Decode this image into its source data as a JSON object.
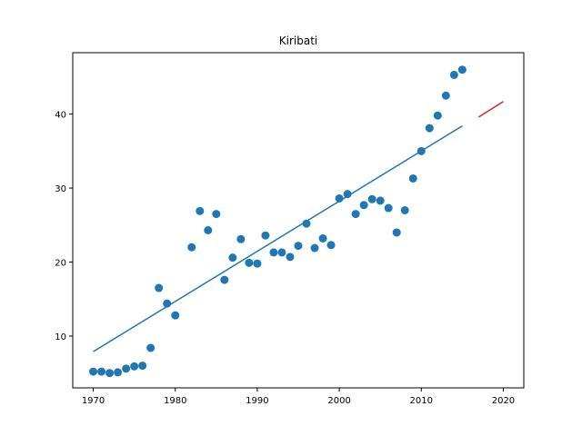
{
  "chart_data": {
    "type": "scatter",
    "title": "Kiribati",
    "xlabel": "",
    "ylabel": "",
    "xlim": [
      1967.5,
      2022.5
    ],
    "ylim": [
      3.0,
      48.3
    ],
    "xticks": [
      1970,
      1980,
      1990,
      2000,
      2010,
      2020
    ],
    "yticks": [
      10,
      20,
      30,
      40
    ],
    "grid": false,
    "colors": {
      "points": "#1f77b4",
      "fit": "#1f77b4",
      "projection": "#d62728"
    },
    "series": [
      {
        "kind": "points",
        "x": [
          1970,
          1971,
          1972,
          1973,
          1974,
          1975,
          1976,
          1977,
          1978,
          1979,
          1980,
          1982,
          1983,
          1984,
          1985,
          1986,
          1987,
          1988,
          1989,
          1990,
          1991,
          1992,
          1993,
          1994,
          1995,
          1996,
          1997,
          1998,
          1999,
          2000,
          2001,
          2002,
          2003,
          2004,
          2005,
          2006,
          2007,
          2008,
          2009,
          2010,
          2011,
          2012,
          2013,
          2014,
          2015
        ],
        "y": [
          5.2,
          5.2,
          5.0,
          5.1,
          5.6,
          5.9,
          6.0,
          8.4,
          16.5,
          14.4,
          12.8,
          22.0,
          26.9,
          24.3,
          26.5,
          17.6,
          20.6,
          23.1,
          19.9,
          19.8,
          23.6,
          21.3,
          21.3,
          20.7,
          22.2,
          25.2,
          21.9,
          23.2,
          22.3,
          28.6,
          29.2,
          26.5,
          27.7,
          28.5,
          28.3,
          27.3,
          24.0,
          27.0,
          31.3,
          35.0,
          38.1,
          39.8,
          42.5,
          45.3,
          46.0
        ]
      },
      {
        "kind": "line",
        "x": [
          1970,
          2015
        ],
        "y": [
          7.9,
          38.4
        ]
      },
      {
        "kind": "line",
        "x": [
          2017,
          2020
        ],
        "y": [
          39.6,
          41.7
        ]
      }
    ]
  }
}
